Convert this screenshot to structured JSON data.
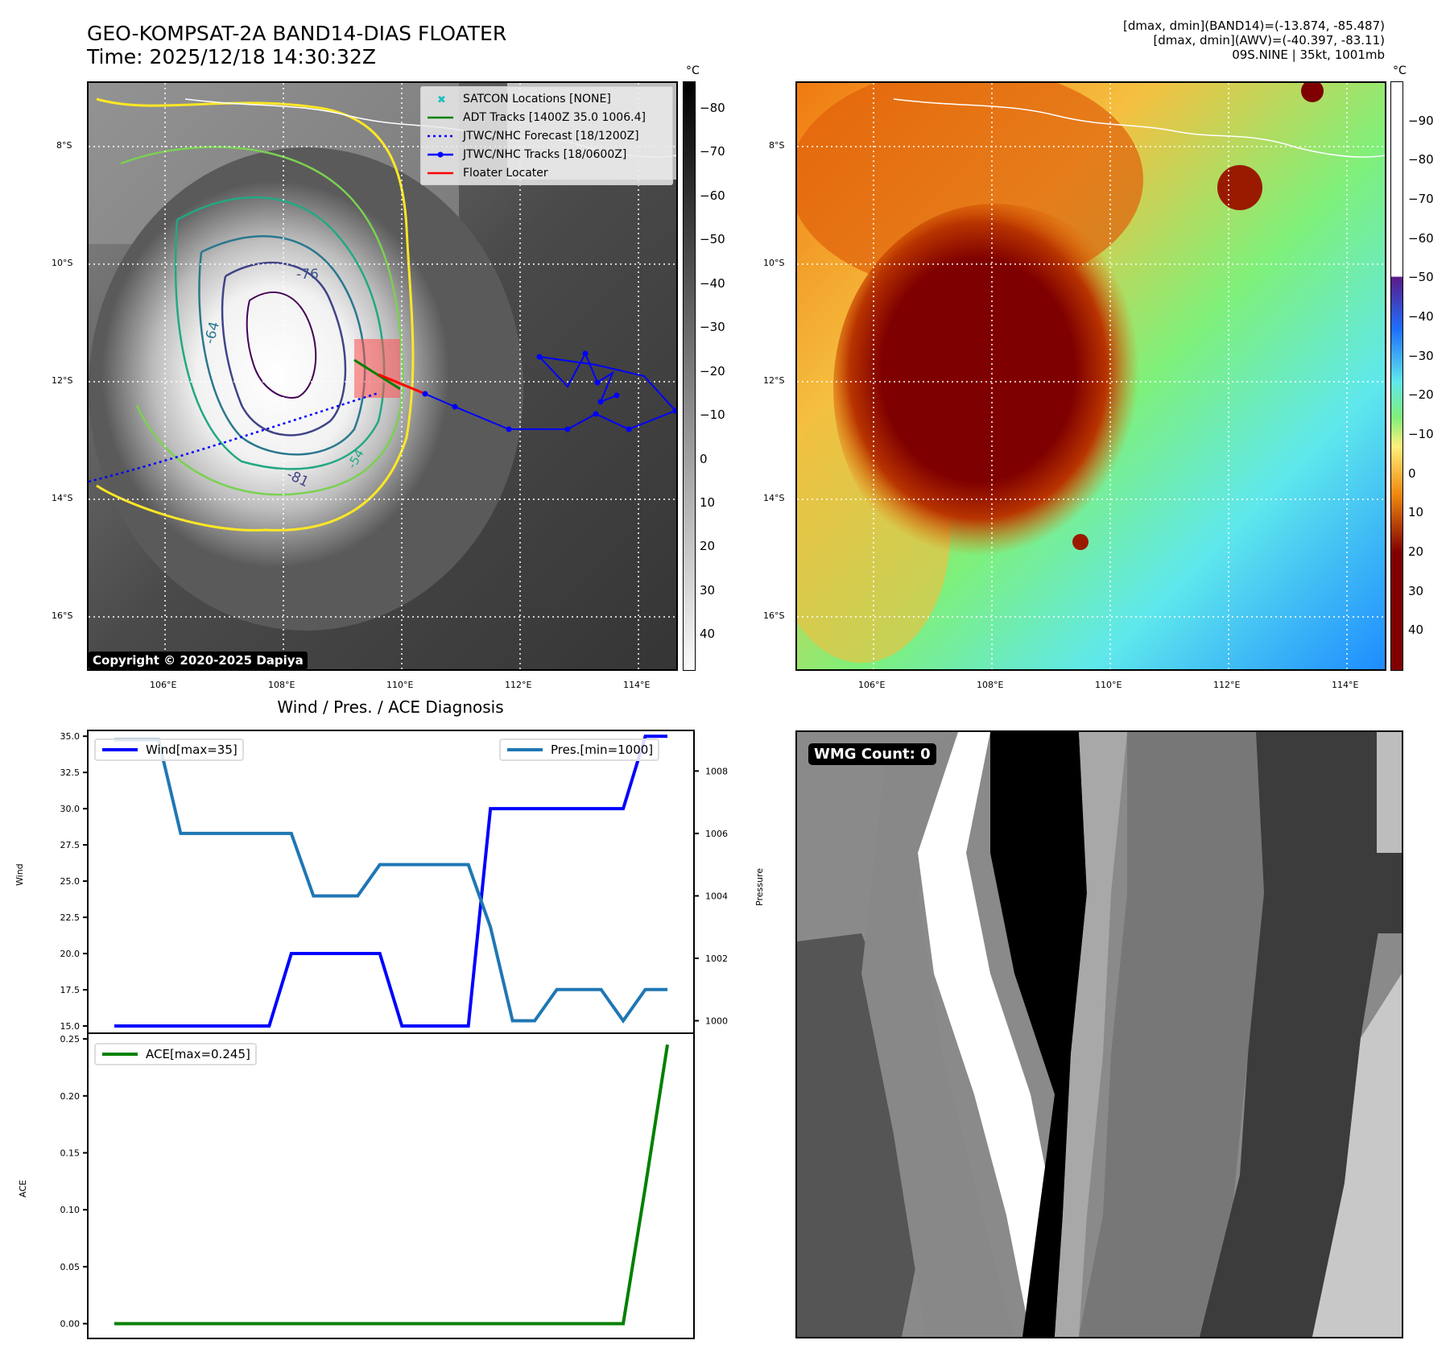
{
  "header": {
    "title_line1": "GEO-KOMPSAT-2A BAND14-DIAS FLOATER",
    "title_line2": "Time: 2025/12/18 14:30:32Z",
    "info_line1": "[dmax, dmin](BAND14)=(-13.874, -85.487)",
    "info_line2": "[dmax, dmin](AWV)=(-40.397, -83.11)",
    "info_line3": "09S.NINE | 35kt, 1001mb"
  },
  "left_map": {
    "lat_labels": [
      "8°S",
      "10°S",
      "12°S",
      "14°S",
      "16°S"
    ],
    "lon_labels": [
      "106°E",
      "108°E",
      "110°E",
      "112°E",
      "114°E"
    ],
    "contour_labels": [
      "-76",
      "-64",
      "-81",
      "-54"
    ],
    "copyright": "Copyright © 2020-2025 Dapiya",
    "legend": [
      {
        "label": "SATCON Locations [NONE]",
        "color": "#1fbfbf",
        "style": "x-marker"
      },
      {
        "label": "ADT Tracks [1400Z 35.0 1006.4]",
        "color": "#008000",
        "style": "solid"
      },
      {
        "label": "JTWC/NHC Forecast [18/1200Z]",
        "color": "#0000ff",
        "style": "dotted"
      },
      {
        "label": "JTWC/NHC Tracks [18/0600Z]",
        "color": "#0000ff",
        "style": "line-marker"
      },
      {
        "label": "Floater Locater",
        "color": "#ff0000",
        "style": "solid"
      }
    ],
    "colorbar": {
      "unit": "°C",
      "ticks": [
        "40",
        "30",
        "20",
        "10",
        "0",
        "−10",
        "−20",
        "−30",
        "−40",
        "−50",
        "−60",
        "−70",
        "−80"
      ]
    }
  },
  "right_map": {
    "lat_labels": [
      "8°S",
      "10°S",
      "12°S",
      "14°S",
      "16°S"
    ],
    "lon_labels": [
      "106°E",
      "108°E",
      "110°E",
      "112°E",
      "114°E"
    ],
    "colorbar": {
      "unit": "°C",
      "ticks": [
        "40",
        "30",
        "20",
        "10",
        "0",
        "−10",
        "−20",
        "−30",
        "−40",
        "−50",
        "−60",
        "−70",
        "−80",
        "−90"
      ]
    }
  },
  "wmg_panel": {
    "badge": "WMG Count: 0"
  },
  "chart_data": [
    {
      "type": "line",
      "title": "Wind / Pres. / ACE Diagnosis",
      "ylabel": "Wind",
      "ylabel_right": "Pressure",
      "ylim": [
        14.5,
        35.4
      ],
      "ylim_right": [
        999.6,
        1009.3
      ],
      "yticks": [
        "35.0",
        "32.5",
        "30.0",
        "27.5",
        "25.0",
        "22.5",
        "20.0",
        "17.5",
        "15.0"
      ],
      "yticks_right": [
        "1008",
        "1006",
        "1004",
        "1002",
        "1000"
      ],
      "x": [
        0,
        1,
        2,
        3,
        4,
        5,
        6,
        7,
        8,
        9,
        10,
        11,
        12,
        13,
        14,
        15,
        16,
        17,
        18,
        19,
        20,
        21,
        22,
        23,
        24,
        25
      ],
      "series": [
        {
          "name": "Wind[max=35]",
          "color": "#0000ff",
          "axis": "left",
          "values": [
            15,
            15,
            15,
            15,
            15,
            15,
            15,
            15,
            20,
            20,
            20,
            20,
            20,
            15,
            15,
            15,
            15,
            30,
            30,
            30,
            30,
            30,
            30,
            30,
            35,
            35
          ]
        },
        {
          "name": "Pres.[min=1000]",
          "color": "#1f77b4",
          "axis": "right",
          "values": [
            1009,
            1009,
            1009,
            1006,
            1006,
            1006,
            1006,
            1006,
            1006,
            1004,
            1004,
            1004,
            1005,
            1005,
            1005,
            1005,
            1005,
            1003,
            1000,
            1000,
            1001,
            1001,
            1001,
            1000,
            1001,
            1001
          ]
        }
      ]
    },
    {
      "type": "line",
      "ylabel": "ACE",
      "ylim": [
        -0.013,
        0.255
      ],
      "yticks": [
        "0.25",
        "0.20",
        "0.15",
        "0.10",
        "0.05",
        "0.00"
      ],
      "x": [
        0,
        1,
        2,
        3,
        4,
        5,
        6,
        7,
        8,
        9,
        10,
        11,
        12,
        13,
        14,
        15,
        16,
        17,
        18,
        19,
        20,
        21,
        22,
        23,
        24,
        25
      ],
      "series": [
        {
          "name": "ACE[max=0.245]",
          "color": "#008000",
          "axis": "left",
          "values": [
            0,
            0,
            0,
            0,
            0,
            0,
            0,
            0,
            0,
            0,
            0,
            0,
            0,
            0,
            0,
            0,
            0,
            0,
            0,
            0,
            0,
            0,
            0,
            0,
            0.12,
            0.245
          ]
        }
      ]
    }
  ]
}
